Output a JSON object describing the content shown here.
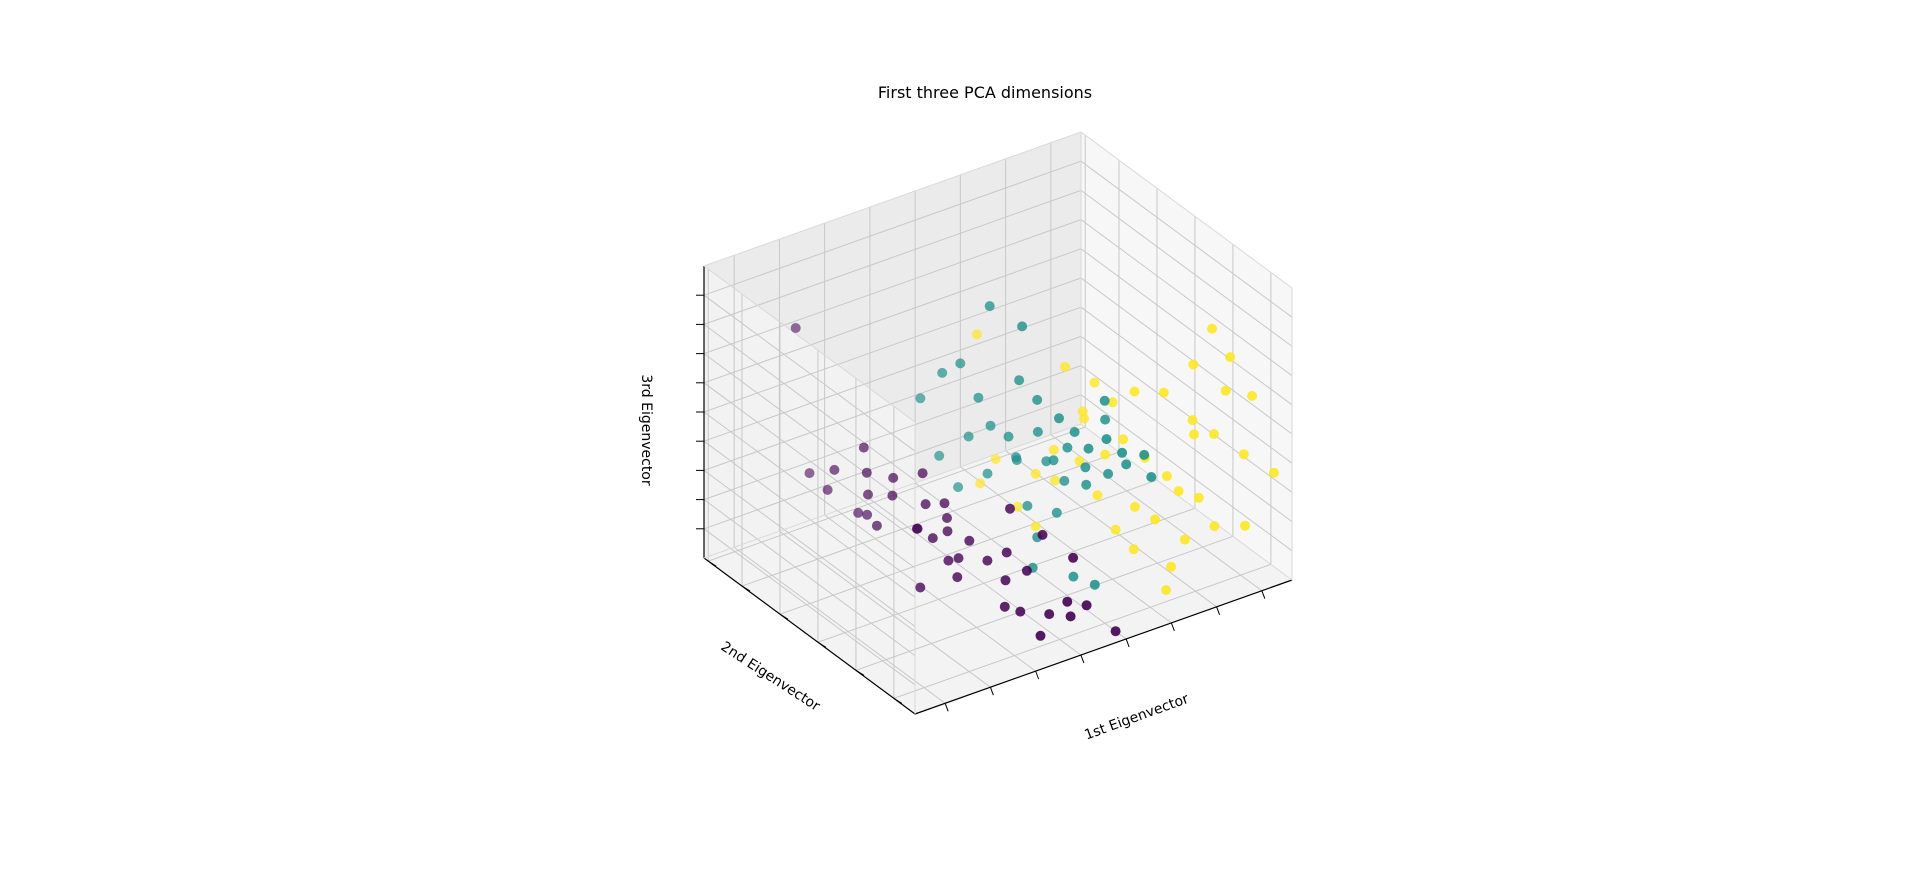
{
  "chart_data": {
    "type": "scatter",
    "projection": "3d",
    "title": "First three PCA dimensions",
    "xlabel": "1st Eigenvector",
    "ylabel": "2nd Eigenvector",
    "zlabel": "3rd Eigenvector",
    "tick_labels_shown": false,
    "grid": true,
    "colormap": "viridis",
    "series": [
      {
        "color": "#440154",
        "points": [
          [
            0.12,
            0.78,
            0.85
          ],
          [
            0.18,
            0.55,
            0.45
          ],
          [
            0.2,
            0.6,
            0.5
          ],
          [
            0.15,
            0.65,
            0.42
          ],
          [
            0.22,
            0.5,
            0.38
          ],
          [
            0.25,
            0.55,
            0.4
          ],
          [
            0.28,
            0.45,
            0.35
          ],
          [
            0.3,
            0.5,
            0.42
          ],
          [
            0.24,
            0.42,
            0.3
          ],
          [
            0.2,
            0.58,
            0.35
          ],
          [
            0.16,
            0.7,
            0.32
          ],
          [
            0.14,
            0.75,
            0.36
          ],
          [
            0.26,
            0.38,
            0.28
          ],
          [
            0.32,
            0.42,
            0.3
          ],
          [
            0.34,
            0.35,
            0.25
          ],
          [
            0.3,
            0.33,
            0.22
          ],
          [
            0.28,
            0.3,
            0.18
          ],
          [
            0.36,
            0.3,
            0.2
          ],
          [
            0.38,
            0.25,
            0.15
          ],
          [
            0.4,
            0.28,
            0.22
          ],
          [
            0.42,
            0.22,
            0.18
          ],
          [
            0.35,
            0.2,
            0.1
          ],
          [
            0.38,
            0.18,
            0.08
          ],
          [
            0.44,
            0.15,
            0.06
          ],
          [
            0.48,
            0.12,
            0.05
          ],
          [
            0.46,
            0.1,
            0.12
          ],
          [
            0.5,
            0.08,
            0.1
          ],
          [
            0.4,
            0.12,
            0.02
          ],
          [
            0.56,
            0.05,
            0.0
          ],
          [
            0.22,
            0.62,
            0.25
          ],
          [
            0.19,
            0.52,
            0.28
          ],
          [
            0.27,
            0.47,
            0.26
          ],
          [
            0.31,
            0.4,
            0.27
          ],
          [
            0.33,
            0.45,
            0.33
          ],
          [
            0.29,
            0.36,
            0.2
          ],
          [
            0.23,
            0.68,
            0.22
          ],
          [
            0.21,
            0.35,
            0.15
          ],
          [
            0.45,
            0.2,
            0.3
          ],
          [
            0.42,
            0.3,
            0.35
          ],
          [
            0.52,
            0.18,
            0.2
          ]
        ]
      },
      {
        "color": "#21918c",
        "points": [
          [
            0.45,
            0.45,
            0.95
          ],
          [
            0.48,
            0.35,
            0.92
          ],
          [
            0.4,
            0.5,
            0.75
          ],
          [
            0.38,
            0.55,
            0.7
          ],
          [
            0.42,
            0.45,
            0.65
          ],
          [
            0.35,
            0.6,
            0.6
          ],
          [
            0.5,
            0.4,
            0.7
          ],
          [
            0.52,
            0.35,
            0.65
          ],
          [
            0.55,
            0.3,
            0.6
          ],
          [
            0.58,
            0.28,
            0.55
          ],
          [
            0.6,
            0.25,
            0.5
          ],
          [
            0.62,
            0.2,
            0.55
          ],
          [
            0.65,
            0.18,
            0.5
          ],
          [
            0.55,
            0.4,
            0.5
          ],
          [
            0.5,
            0.45,
            0.48
          ],
          [
            0.48,
            0.5,
            0.5
          ],
          [
            0.6,
            0.35,
            0.45
          ],
          [
            0.62,
            0.3,
            0.4
          ],
          [
            0.58,
            0.38,
            0.4
          ],
          [
            0.45,
            0.55,
            0.45
          ],
          [
            0.4,
            0.6,
            0.38
          ],
          [
            0.52,
            0.45,
            0.4
          ],
          [
            0.55,
            0.5,
            0.35
          ],
          [
            0.6,
            0.45,
            0.35
          ],
          [
            0.65,
            0.35,
            0.3
          ],
          [
            0.68,
            0.3,
            0.35
          ],
          [
            0.7,
            0.25,
            0.4
          ],
          [
            0.72,
            0.2,
            0.45
          ],
          [
            0.75,
            0.22,
            0.35
          ],
          [
            0.62,
            0.4,
            0.3
          ],
          [
            0.5,
            0.55,
            0.3
          ],
          [
            0.45,
            0.6,
            0.25
          ],
          [
            0.55,
            0.45,
            0.22
          ],
          [
            0.6,
            0.4,
            0.2
          ],
          [
            0.52,
            0.35,
            0.18
          ],
          [
            0.48,
            0.3,
            0.12
          ],
          [
            0.56,
            0.25,
            0.08
          ],
          [
            0.6,
            0.22,
            0.05
          ],
          [
            0.7,
            0.35,
            0.5
          ],
          [
            0.66,
            0.28,
            0.62
          ]
        ]
      },
      {
        "color": "#fde725",
        "points": [
          [
            0.9,
            0.2,
            0.8
          ],
          [
            0.92,
            0.15,
            0.72
          ],
          [
            0.85,
            0.2,
            0.7
          ],
          [
            0.88,
            0.1,
            0.65
          ],
          [
            0.95,
            0.1,
            0.6
          ],
          [
            0.8,
            0.25,
            0.6
          ],
          [
            0.82,
            0.15,
            0.55
          ],
          [
            0.86,
            0.12,
            0.5
          ],
          [
            0.9,
            0.05,
            0.45
          ],
          [
            0.98,
            0.05,
            0.35
          ],
          [
            0.75,
            0.3,
            0.6
          ],
          [
            0.72,
            0.35,
            0.55
          ],
          [
            0.7,
            0.4,
            0.6
          ],
          [
            0.65,
            0.45,
            0.65
          ],
          [
            0.68,
            0.42,
            0.5
          ],
          [
            0.72,
            0.3,
            0.45
          ],
          [
            0.75,
            0.25,
            0.4
          ],
          [
            0.78,
            0.2,
            0.35
          ],
          [
            0.8,
            0.18,
            0.3
          ],
          [
            0.82,
            0.12,
            0.3
          ],
          [
            0.7,
            0.35,
            0.38
          ],
          [
            0.66,
            0.4,
            0.35
          ],
          [
            0.62,
            0.45,
            0.38
          ],
          [
            0.6,
            0.5,
            0.28
          ],
          [
            0.64,
            0.48,
            0.25
          ],
          [
            0.68,
            0.35,
            0.25
          ],
          [
            0.74,
            0.28,
            0.22
          ],
          [
            0.76,
            0.22,
            0.2
          ],
          [
            0.8,
            0.15,
            0.15
          ],
          [
            0.85,
            0.1,
            0.2
          ],
          [
            0.92,
            0.08,
            0.18
          ],
          [
            0.7,
            0.3,
            0.15
          ],
          [
            0.72,
            0.25,
            0.1
          ],
          [
            0.78,
            0.18,
            0.05
          ],
          [
            0.75,
            0.15,
            0.0
          ],
          [
            0.55,
            0.6,
            0.3
          ],
          [
            0.52,
            0.62,
            0.22
          ],
          [
            0.58,
            0.55,
            0.15
          ],
          [
            0.6,
            0.5,
            0.1
          ],
          [
            0.5,
            0.6,
            0.75
          ],
          [
            0.88,
            0.25,
            0.42
          ],
          [
            0.7,
            0.45,
            0.45
          ]
        ]
      }
    ]
  }
}
